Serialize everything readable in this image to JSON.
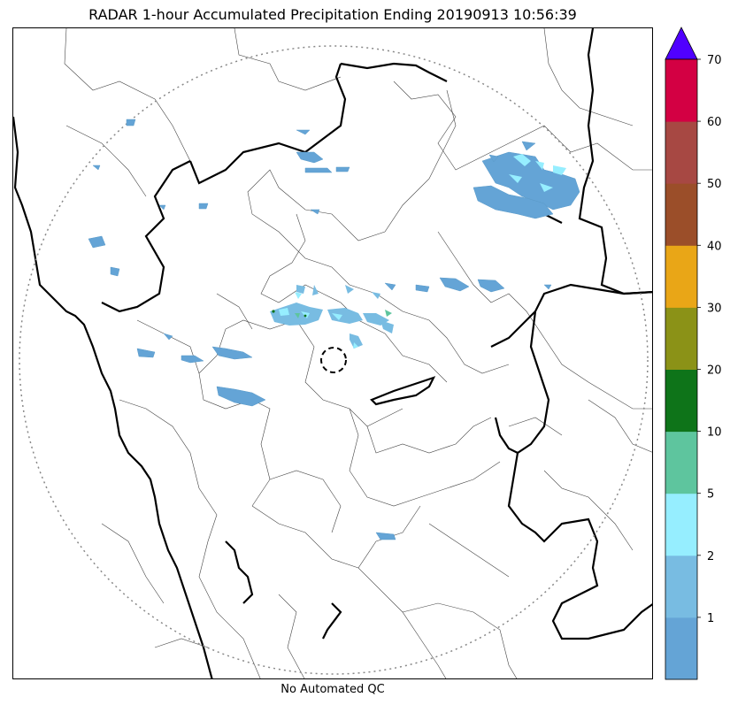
{
  "title": "RADAR 1-hour Accumulated Precipitation Ending 20190913 10:56:39",
  "footer": "No Automated QC",
  "colorbar": {
    "ticks": [
      "1",
      "2",
      "5",
      "10",
      "20",
      "30",
      "40",
      "50",
      "60",
      "70"
    ],
    "colors": [
      "#64a4d6",
      "#78bce2",
      "#96eeff",
      "#5ec59e",
      "#0e7419",
      "#8b9217",
      "#e9a617",
      "#9b4e29",
      "#a74843",
      "#d30043"
    ],
    "over_color": "#5000ff"
  },
  "map": {
    "features": [
      "coastline",
      "state-boundaries",
      "district-boundaries",
      "radar-range-ring",
      "radar-site-marker",
      "precipitation-echoes"
    ]
  }
}
